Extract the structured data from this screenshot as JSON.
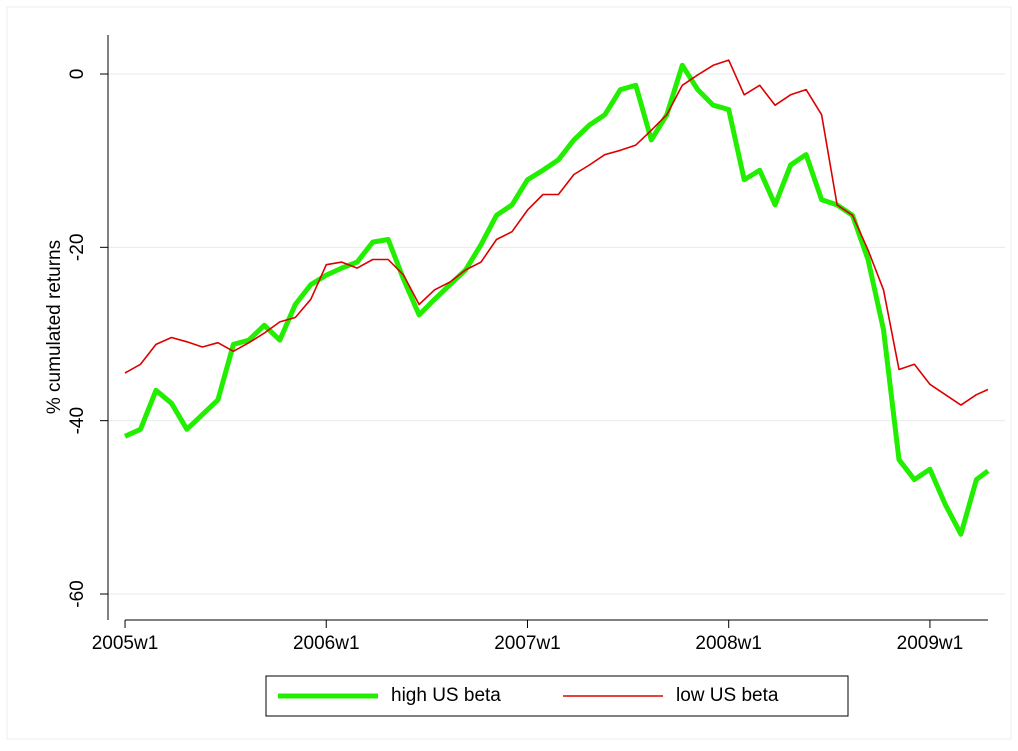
{
  "chart_data": {
    "type": "line",
    "y_label": "% cumulated returns",
    "x": [
      2340,
      2344,
      2348,
      2352,
      2356,
      2360,
      2364,
      2368,
      2372,
      2376,
      2380,
      2384,
      2388,
      2392,
      2396,
      2400,
      2404,
      2408,
      2412,
      2416,
      2420,
      2424,
      2428,
      2432,
      2436,
      2440,
      2444,
      2448,
      2452,
      2456,
      2460,
      2464,
      2468,
      2472,
      2476,
      2480,
      2484,
      2488,
      2492,
      2496,
      2500,
      2504,
      2508,
      2512,
      2516,
      2520,
      2524,
      2528,
      2532,
      2536,
      2540,
      2544,
      2548,
      2552,
      2556,
      2560,
      2563
    ],
    "series": [
      {
        "name": "high US beta",
        "color": "#22ee00",
        "values": [
          -41.8,
          -41,
          -36.5,
          -38,
          -41,
          -39.3,
          -37.6,
          -31.2,
          -30.7,
          -29,
          -30.7,
          -26.6,
          -24.3,
          -23.2,
          -22.4,
          -21.7,
          -19.4,
          -19.1,
          -23.7,
          -27.8,
          -26,
          -24.3,
          -22.6,
          -19.7,
          -16.3,
          -15.1,
          -12.2,
          -11.1,
          -9.9,
          -7.6,
          -5.9,
          -4.7,
          -1.8,
          -1.3,
          -7.6,
          -4.7,
          1,
          -1.8,
          -3.6,
          -4.1,
          -12.2,
          -11.1,
          -15.1,
          -10.5,
          -9.3,
          -14.5,
          -15.1,
          -16.3,
          -21.4,
          -29.5,
          -44.5,
          -46.8,
          -45.6,
          -49.7,
          -53.1,
          -46.8,
          -45.8
        ]
      },
      {
        "name": "low US beta",
        "color": "#dd0000",
        "values": [
          -34.5,
          -33.5,
          -31.2,
          -30.4,
          -30.9,
          -31.5,
          -31,
          -32,
          -31,
          -29.9,
          -28.6,
          -28.1,
          -26,
          -22,
          -21.7,
          -22.4,
          -21.4,
          -21.4,
          -23.2,
          -26.6,
          -24.9,
          -24,
          -22.6,
          -21.7,
          -19.1,
          -18.2,
          -15.7,
          -13.9,
          -13.9,
          -11.6,
          -10.5,
          -9.3,
          -8.8,
          -8.2,
          -6.5,
          -4.7,
          -1.3,
          -0.1,
          1,
          1.6,
          -2.4,
          -1.3,
          -3.6,
          -2.4,
          -1.8,
          -4.7,
          -15.1,
          -16.3,
          -20.3,
          -24.9,
          -34.1,
          -33.5,
          -35.8,
          -37,
          -38.2,
          -37,
          -36.4
        ]
      }
    ],
    "xlim": [
      2335.6,
      2567.4
    ],
    "xticks": [
      {
        "value": 2340,
        "label": "2005w1"
      },
      {
        "value": 2392,
        "label": "2006w1"
      },
      {
        "value": 2444,
        "label": "2007w1"
      },
      {
        "value": 2496,
        "label": "2008w1"
      },
      {
        "value": 2548,
        "label": "2009w1"
      }
    ],
    "ylim": [
      -63,
      4.5
    ],
    "yticks": [
      -60,
      -40,
      -20,
      0
    ],
    "grid": true
  }
}
